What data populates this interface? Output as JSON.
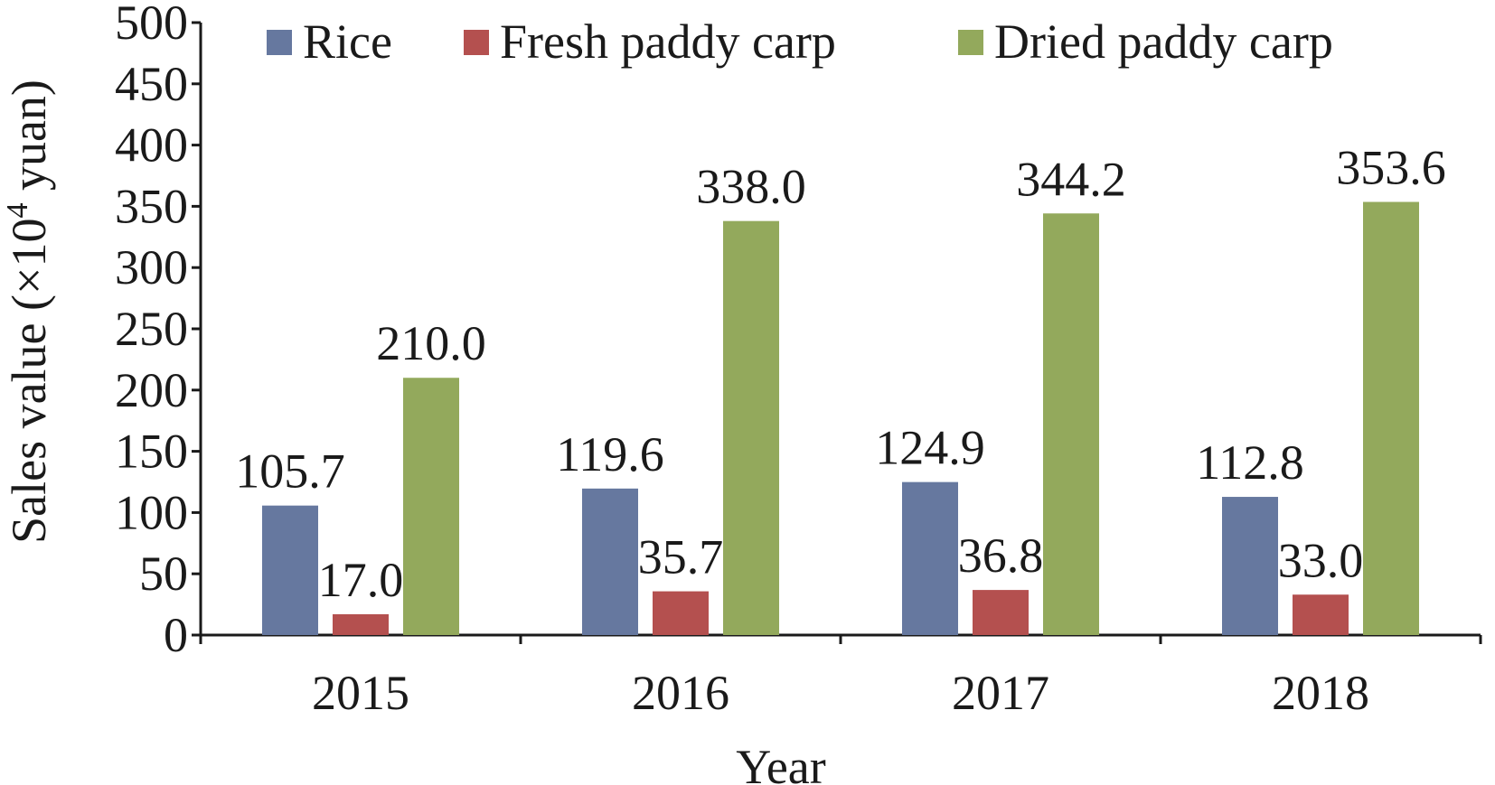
{
  "chart_data": {
    "type": "bar",
    "title": "",
    "xlabel": "Year",
    "ylabel": {
      "prefix": "Sales value (×10",
      "sup": "4",
      "suffix": " yuan)"
    },
    "ylim": [
      0,
      500
    ],
    "yticks": [
      0,
      50,
      100,
      150,
      200,
      250,
      300,
      350,
      400,
      450,
      500
    ],
    "ytick_labels": [
      "0",
      "50",
      "100",
      "150",
      "200",
      "250",
      "300",
      "350",
      "400",
      "450",
      "500"
    ],
    "categories": [
      "2015",
      "2016",
      "2017",
      "2018"
    ],
    "series": [
      {
        "name": "Rice",
        "color": "#66789f",
        "values": [
          105.7,
          119.6,
          124.9,
          112.8
        ],
        "labels": [
          "105.7",
          "119.6",
          "124.9",
          "112.8"
        ]
      },
      {
        "name": "Fresh paddy carp",
        "color": "#b4504f",
        "values": [
          17.0,
          35.7,
          36.8,
          33.0
        ],
        "labels": [
          "17.0",
          "35.7",
          "36.8",
          "33.0"
        ]
      },
      {
        "name": "Dried paddy carp",
        "color": "#93a95c",
        "values": [
          210.0,
          338.0,
          344.2,
          353.6
        ],
        "labels": [
          "210.0",
          "338.0",
          "344.2",
          "353.6"
        ]
      }
    ],
    "grid": false,
    "legend_position": "top"
  }
}
